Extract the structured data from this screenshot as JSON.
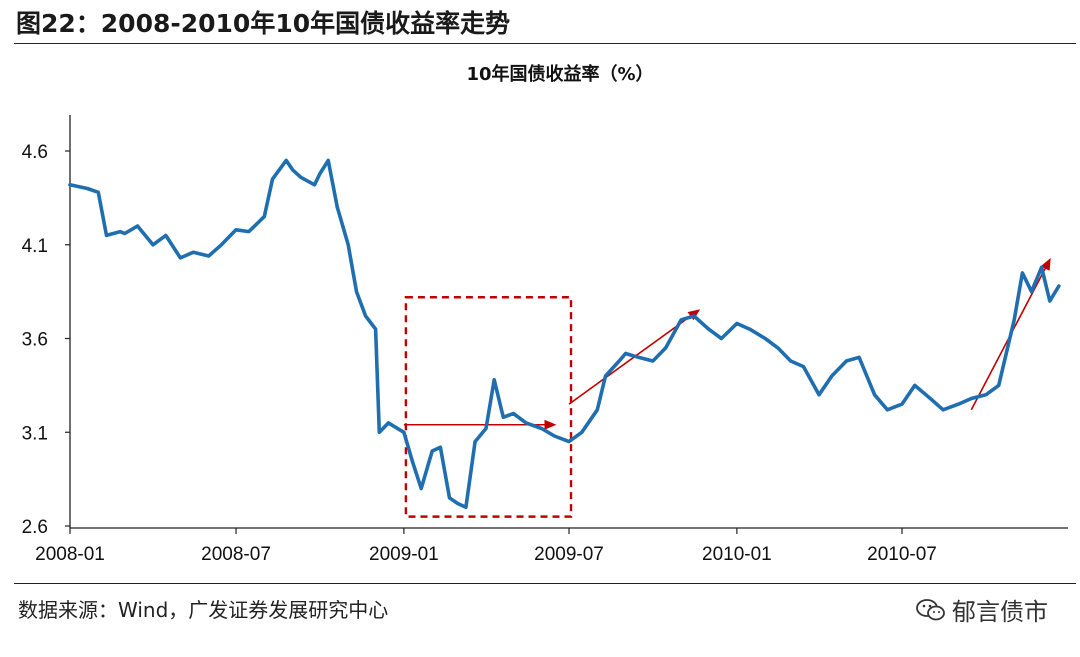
{
  "figure_title": "图22：2008-2010年10年国债收益率走势",
  "source": "数据来源：Wind，广发证券发展研究中心",
  "watermark": {
    "text": "郁言债市",
    "icon": "wechat-icon"
  },
  "colors": {
    "series": "#1f6fb0",
    "annotation": "#c00000"
  },
  "chart_data": {
    "type": "line",
    "title": "10年国债收益率（%）",
    "xlabel": "",
    "ylabel": "",
    "x_ticks": [
      "2008-01",
      "2008-07",
      "2009-01",
      "2009-07",
      "2010-01",
      "2010-07"
    ],
    "y_ticks": [
      2.6,
      3.1,
      3.6,
      4.1,
      4.6
    ],
    "xlim": [
      "2008-01",
      "2010-12"
    ],
    "ylim": [
      2.6,
      4.8
    ],
    "grid": false,
    "legend": "none",
    "series": [
      {
        "values": [
          [
            "2008-01",
            4.42
          ],
          [
            "2008-01-20",
            4.4
          ],
          [
            "2008-02",
            4.38
          ],
          [
            "2008-02-10",
            4.15
          ],
          [
            "2008-02-25",
            4.17
          ],
          [
            "2008-03",
            4.16
          ],
          [
            "2008-03-15",
            4.2
          ],
          [
            "2008-04",
            4.1
          ],
          [
            "2008-04-15",
            4.15
          ],
          [
            "2008-05",
            4.03
          ],
          [
            "2008-05-15",
            4.06
          ],
          [
            "2008-06",
            4.04
          ],
          [
            "2008-06-15",
            4.1
          ],
          [
            "2008-07",
            4.18
          ],
          [
            "2008-07-15",
            4.17
          ],
          [
            "2008-08",
            4.25
          ],
          [
            "2008-08-10",
            4.45
          ],
          [
            "2008-08-25",
            4.55
          ],
          [
            "2008-09",
            4.5
          ],
          [
            "2008-09-10",
            4.46
          ],
          [
            "2008-09-25",
            4.42
          ],
          [
            "2008-10",
            4.48
          ],
          [
            "2008-10-10",
            4.55
          ],
          [
            "2008-10-20",
            4.3
          ],
          [
            "2008-11",
            4.1
          ],
          [
            "2008-11-10",
            3.85
          ],
          [
            "2008-11-20",
            3.72
          ],
          [
            "2008-12",
            3.65
          ],
          [
            "2008-12-05",
            3.1
          ],
          [
            "2008-12-15",
            3.15
          ],
          [
            "2009-01",
            3.1
          ],
          [
            "2009-01-10",
            2.95
          ],
          [
            "2009-01-20",
            2.8
          ],
          [
            "2009-02",
            3.0
          ],
          [
            "2009-02-10",
            3.02
          ],
          [
            "2009-02-20",
            2.75
          ],
          [
            "2009-03",
            2.72
          ],
          [
            "2009-03-10",
            2.7
          ],
          [
            "2009-03-20",
            3.05
          ],
          [
            "2009-04",
            3.12
          ],
          [
            "2009-04-10",
            3.38
          ],
          [
            "2009-04-20",
            3.18
          ],
          [
            "2009-05",
            3.2
          ],
          [
            "2009-05-15",
            3.15
          ],
          [
            "2009-06",
            3.12
          ],
          [
            "2009-06-15",
            3.08
          ],
          [
            "2009-07",
            3.05
          ],
          [
            "2009-07-15",
            3.1
          ],
          [
            "2009-08",
            3.22
          ],
          [
            "2009-08-10",
            3.4
          ],
          [
            "2009-08-25",
            3.48
          ],
          [
            "2009-09",
            3.52
          ],
          [
            "2009-09-15",
            3.5
          ],
          [
            "2009-10",
            3.48
          ],
          [
            "2009-10-15",
            3.55
          ],
          [
            "2009-11",
            3.7
          ],
          [
            "2009-11-15",
            3.72
          ],
          [
            "2009-12",
            3.65
          ],
          [
            "2009-12-15",
            3.6
          ],
          [
            "2010-01",
            3.68
          ],
          [
            "2010-01-15",
            3.65
          ],
          [
            "2010-02",
            3.6
          ],
          [
            "2010-02-15",
            3.55
          ],
          [
            "2010-03",
            3.48
          ],
          [
            "2010-03-15",
            3.45
          ],
          [
            "2010-04",
            3.3
          ],
          [
            "2010-04-15",
            3.4
          ],
          [
            "2010-05",
            3.48
          ],
          [
            "2010-05-15",
            3.5
          ],
          [
            "2010-06",
            3.3
          ],
          [
            "2010-06-15",
            3.22
          ],
          [
            "2010-07",
            3.25
          ],
          [
            "2010-07-15",
            3.35
          ],
          [
            "2010-08",
            3.28
          ],
          [
            "2010-08-15",
            3.22
          ],
          [
            "2010-09",
            3.25
          ],
          [
            "2010-09-15",
            3.28
          ],
          [
            "2010-10",
            3.3
          ],
          [
            "2010-10-15",
            3.35
          ],
          [
            "2010-11",
            3.7
          ],
          [
            "2010-11-10",
            3.95
          ],
          [
            "2010-11-20",
            3.85
          ],
          [
            "2010-12",
            3.98
          ],
          [
            "2010-12-10",
            3.8
          ],
          [
            "2010-12-20",
            3.88
          ]
        ]
      }
    ],
    "annotations": [
      {
        "type": "box",
        "x0": "2009-01",
        "x1": "2009-07",
        "y0": 2.65,
        "y1": 3.82,
        "style": "dashed"
      },
      {
        "type": "arrow",
        "from": [
          "2009-01",
          3.14
        ],
        "to": [
          "2009-06-15",
          3.14
        ]
      },
      {
        "type": "arrow",
        "from": [
          "2009-07",
          3.25
        ],
        "to": [
          "2009-11-20",
          3.75
        ]
      },
      {
        "type": "arrow",
        "from": [
          "2010-09-15",
          3.22
        ],
        "to": [
          "2010-12-10",
          4.02
        ]
      }
    ]
  }
}
